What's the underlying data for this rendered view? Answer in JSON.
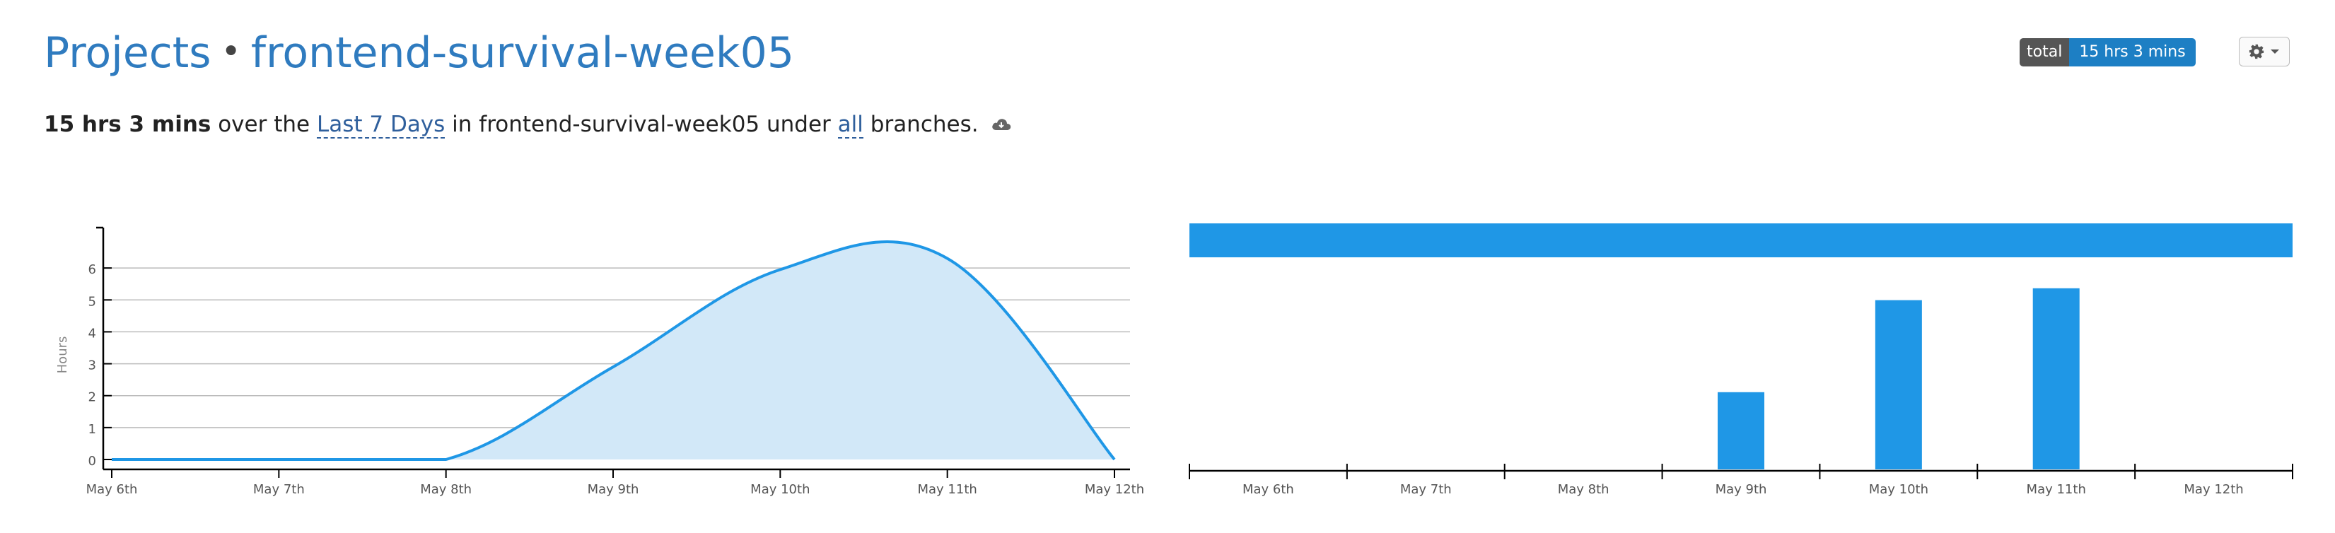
{
  "header": {
    "breadcrumb_root": "Projects",
    "separator": "•",
    "project_name": "frontend-survival-week05"
  },
  "summary": {
    "total_time": "15 hrs 3 mins",
    "over_the": "over the",
    "range_label": "Last 7 Days",
    "in_text": "in frontend-survival-week05 under",
    "branch_label": "all",
    "branches_text": "branches."
  },
  "badge": {
    "label": "total",
    "value": "15 hrs 3 mins"
  },
  "settings": {
    "icon": "gear-icon",
    "caret": "caret-down-icon"
  },
  "colors": {
    "accent": "#1f97e6",
    "area_fill": "#d2e8f8",
    "title": "#2f7bbf",
    "badge_value_bg": "#1d7fc4"
  },
  "chart_data": [
    {
      "type": "area",
      "ylabel": "Hours",
      "xlabel": "",
      "x": [
        "May 6th",
        "May 7th",
        "May 8th",
        "May 9th",
        "May 10th",
        "May 11th",
        "May 12th"
      ],
      "values": [
        0,
        0,
        0,
        2.9,
        5.95,
        6.3,
        0
      ],
      "yticks": [
        0,
        1,
        2,
        3,
        4,
        5,
        6
      ],
      "ylim": [
        0,
        7
      ],
      "grid": true
    },
    {
      "type": "bar",
      "x": [
        "May 6th",
        "May 7th",
        "May 8th",
        "May 9th",
        "May 10th",
        "May 11th",
        "May 12th"
      ],
      "values": [
        0,
        0,
        0,
        2.6,
        5.7,
        6.1,
        0
      ],
      "ylim": [
        0,
        7
      ],
      "top_band": "full-width timeline bar"
    }
  ]
}
